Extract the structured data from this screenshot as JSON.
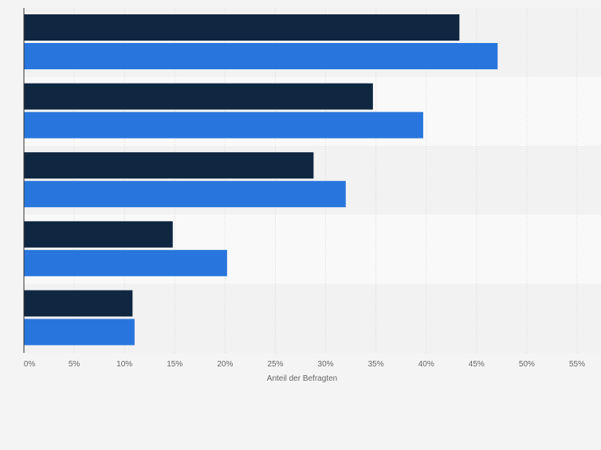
{
  "chart_data": {
    "type": "bar",
    "orientation": "horizontal",
    "title": "",
    "xlabel": "Anteil der Befragten",
    "ylabel": "",
    "xlim": [
      0,
      55
    ],
    "x_ticks": [
      "0%",
      "5%",
      "10%",
      "15%",
      "20%",
      "25%",
      "30%",
      "35%",
      "40%",
      "45%",
      "50%",
      "55%"
    ],
    "grid": true,
    "categories": [
      "",
      "",
      "",
      "",
      ""
    ],
    "series": [
      {
        "color": "#0f2741",
        "values": [
          43.3,
          34.7,
          28.8,
          14.8,
          10.8
        ]
      },
      {
        "color": "#2876dd",
        "values": [
          47.1,
          39.7,
          32.0,
          20.2,
          11.0
        ]
      }
    ]
  }
}
